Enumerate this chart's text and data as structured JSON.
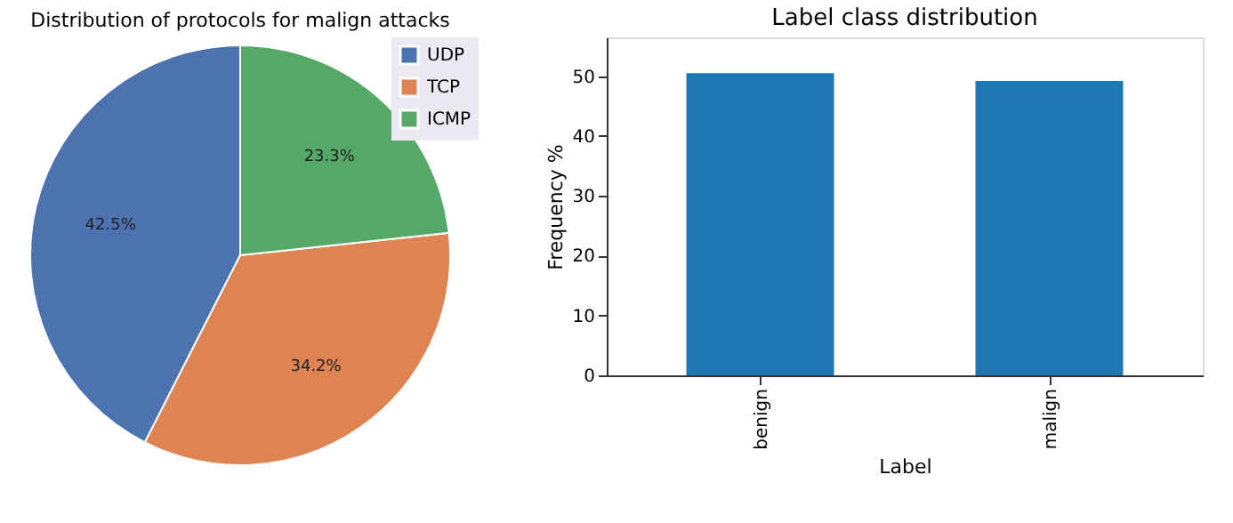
{
  "chart_data": [
    {
      "type": "pie",
      "title": "Distribution of protocols for malign attacks",
      "categories": [
        "UDP",
        "TCP",
        "ICMP"
      ],
      "values": [
        42.5,
        34.2,
        23.3
      ],
      "colors": [
        "#4c72b0",
        "#dd8452",
        "#55a868"
      ],
      "value_labels": [
        "42.5%",
        "34.2%",
        "23.3%"
      ],
      "legend": "top right"
    },
    {
      "type": "bar",
      "title": "Label class distribution",
      "categories": [
        "benign",
        "malign"
      ],
      "values": [
        50.5,
        49.2
      ],
      "color": "#1f77b4",
      "xlabel": "Label",
      "ylabel": "Frequency %",
      "ylim": [
        0,
        56.5
      ],
      "yticks": [
        0,
        10,
        20,
        30,
        40,
        50
      ],
      "grid": false
    }
  ]
}
